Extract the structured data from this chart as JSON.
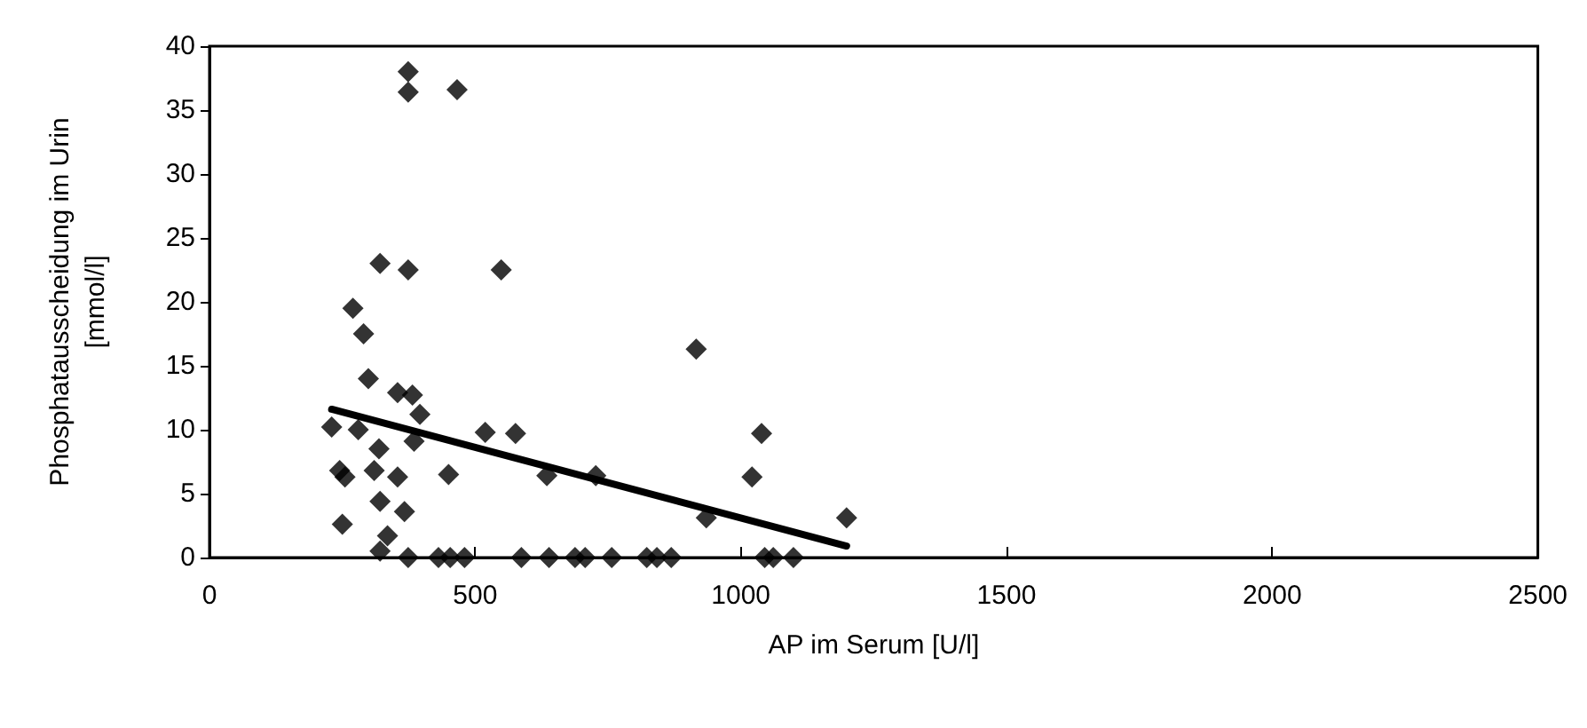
{
  "chart_data": {
    "type": "scatter",
    "xlabel": "AP im Serum [U/l]",
    "ylabel": "Phosphatausscheidung im Urin\n[mmol/l]",
    "marker": "diamond",
    "grid": false,
    "xlim": [
      0,
      2500
    ],
    "xticks": [
      0,
      500,
      1000,
      1500,
      2000,
      2500
    ],
    "ylim": [
      0,
      40
    ],
    "yticks": [
      0,
      5,
      10,
      15,
      20,
      25,
      30,
      35,
      40
    ],
    "series": [
      {
        "color": "#000000",
        "x": [
          374,
          374,
          466,
          321,
          374,
          549,
          290,
          916,
          299,
          354,
          382,
          396,
          519,
          576,
          385,
          319,
          354,
          450,
          635,
          727,
          1039,
          1021,
          1199,
          935,
          321,
          367,
          335,
          321,
          230,
          245,
          255,
          250,
          270,
          280,
          310,
          374,
          431,
          453,
          480,
          587,
          639,
          688,
          707,
          757,
          823,
          842,
          869,
          1045,
          1061,
          1099
        ],
        "values": [
          38.0,
          36.4,
          36.6,
          23.0,
          22.5,
          22.5,
          17.5,
          16.3,
          14.0,
          12.9,
          12.7,
          11.2,
          9.8,
          9.7,
          9.1,
          8.5,
          6.3,
          6.5,
          6.4,
          6.4,
          9.7,
          6.3,
          3.1,
          3.1,
          4.4,
          3.6,
          1.7,
          0.5,
          10.2,
          6.8,
          6.3,
          2.6,
          19.5,
          10,
          6.8,
          0,
          0,
          0,
          0,
          0,
          0,
          0,
          0,
          0,
          0,
          0,
          0,
          0,
          0,
          0
        ]
      },
      {
        "type": "line",
        "color": "#000000",
        "marker": "none",
        "x": [
          230,
          1199
        ],
        "values": [
          11.6,
          0.9
        ]
      }
    ]
  }
}
